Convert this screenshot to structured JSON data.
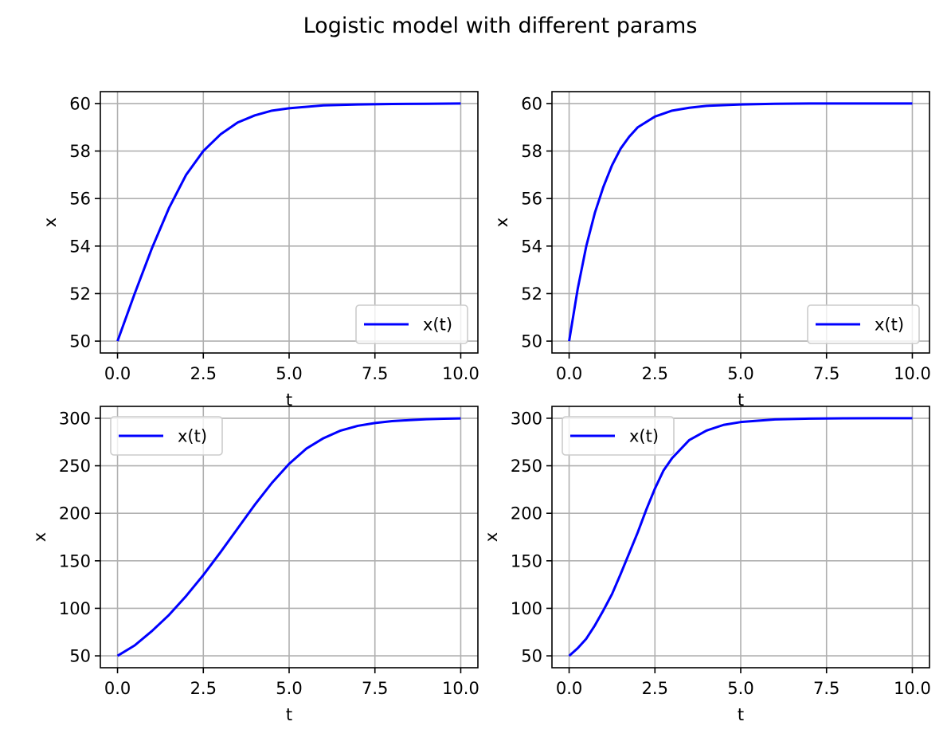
{
  "figure": {
    "suptitle": "Logistic model with different params"
  },
  "colors": {
    "line": "#0000ff",
    "grid": "#b0b0b0",
    "axes": "#000000",
    "legend_border": "#cccccc"
  },
  "chart_data": [
    {
      "type": "line",
      "xlabel": "t",
      "ylabel": "x",
      "xlim": [
        -0.5,
        10.5
      ],
      "ylim": [
        49.5,
        60.5
      ],
      "xticks": [
        0.0,
        2.5,
        5.0,
        7.5,
        10.0
      ],
      "xtick_labels": [
        "0.0",
        "2.5",
        "5.0",
        "7.5",
        "10.0"
      ],
      "yticks": [
        50,
        52,
        54,
        56,
        58,
        60
      ],
      "ytick_labels": [
        "50",
        "52",
        "54",
        "56",
        "58",
        "60"
      ],
      "grid": true,
      "legend_placement": "lower right",
      "series": [
        {
          "name": "x(t)",
          "x": [
            0,
            0.5,
            1,
            1.5,
            2,
            2.5,
            3,
            3.5,
            4,
            4.5,
            5,
            6,
            7,
            8,
            9,
            10
          ],
          "y": [
            50,
            52.0,
            53.9,
            55.6,
            57.0,
            58.0,
            58.7,
            59.2,
            59.5,
            59.7,
            59.8,
            59.92,
            59.96,
            59.98,
            59.99,
            60.0
          ]
        }
      ]
    },
    {
      "type": "line",
      "xlabel": "t",
      "ylabel": "x",
      "xlim": [
        -0.5,
        10.5
      ],
      "ylim": [
        49.5,
        60.5
      ],
      "xticks": [
        0.0,
        2.5,
        5.0,
        7.5,
        10.0
      ],
      "xtick_labels": [
        "0.0",
        "2.5",
        "5.0",
        "7.5",
        "10.0"
      ],
      "yticks": [
        50,
        52,
        54,
        56,
        58,
        60
      ],
      "ytick_labels": [
        "50",
        "52",
        "54",
        "56",
        "58",
        "60"
      ],
      "grid": true,
      "legend_placement": "lower right",
      "series": [
        {
          "name": "x(t)",
          "x": [
            0,
            0.25,
            0.5,
            0.75,
            1,
            1.25,
            1.5,
            1.75,
            2,
            2.5,
            3,
            3.5,
            4,
            5,
            6,
            7,
            8,
            10
          ],
          "y": [
            50,
            52.2,
            54.0,
            55.4,
            56.5,
            57.4,
            58.1,
            58.6,
            59.0,
            59.45,
            59.7,
            59.82,
            59.9,
            59.96,
            59.99,
            60.0,
            60.0,
            60.0
          ]
        }
      ]
    },
    {
      "type": "line",
      "xlabel": "t",
      "ylabel": "x",
      "xlim": [
        -0.5,
        10.5
      ],
      "ylim": [
        37.5,
        312.5
      ],
      "xticks": [
        0.0,
        2.5,
        5.0,
        7.5,
        10.0
      ],
      "xtick_labels": [
        "0.0",
        "2.5",
        "5.0",
        "7.5",
        "10.0"
      ],
      "yticks": [
        50,
        100,
        150,
        200,
        250,
        300
      ],
      "ytick_labels": [
        "50",
        "100",
        "150",
        "200",
        "250",
        "300"
      ],
      "grid": true,
      "legend_placement": "upper left",
      "series": [
        {
          "name": "x(t)",
          "x": [
            0,
            0.5,
            1,
            1.5,
            2,
            2.5,
            3,
            3.5,
            4,
            4.5,
            5,
            5.5,
            6,
            6.5,
            7,
            7.5,
            8,
            8.5,
            9,
            9.5,
            10
          ],
          "y": [
            50,
            61,
            76,
            93,
            113,
            135,
            159,
            184,
            209,
            232,
            252,
            268,
            279,
            287,
            292,
            295,
            297,
            298,
            299,
            299.5,
            299.8
          ]
        }
      ]
    },
    {
      "type": "line",
      "xlabel": "t",
      "ylabel": "x",
      "xlim": [
        -0.5,
        10.5
      ],
      "ylim": [
        37.5,
        312.5
      ],
      "xticks": [
        0.0,
        2.5,
        5.0,
        7.5,
        10.0
      ],
      "xtick_labels": [
        "0.0",
        "2.5",
        "5.0",
        "7.5",
        "10.0"
      ],
      "yticks": [
        50,
        100,
        150,
        200,
        250,
        300
      ],
      "ytick_labels": [
        "50",
        "100",
        "150",
        "200",
        "250",
        "300"
      ],
      "grid": true,
      "legend_placement": "upper left",
      "series": [
        {
          "name": "x(t)",
          "x": [
            0,
            0.25,
            0.5,
            0.75,
            1,
            1.25,
            1.5,
            1.75,
            2,
            2.25,
            2.5,
            2.75,
            3,
            3.5,
            4,
            4.5,
            5,
            6,
            7,
            8,
            9,
            10
          ],
          "y": [
            50,
            58,
            68,
            82,
            98,
            115,
            136,
            158,
            180,
            204,
            226,
            245,
            258,
            277,
            287,
            293,
            296,
            298.8,
            299.6,
            299.9,
            300,
            300
          ]
        }
      ]
    }
  ]
}
